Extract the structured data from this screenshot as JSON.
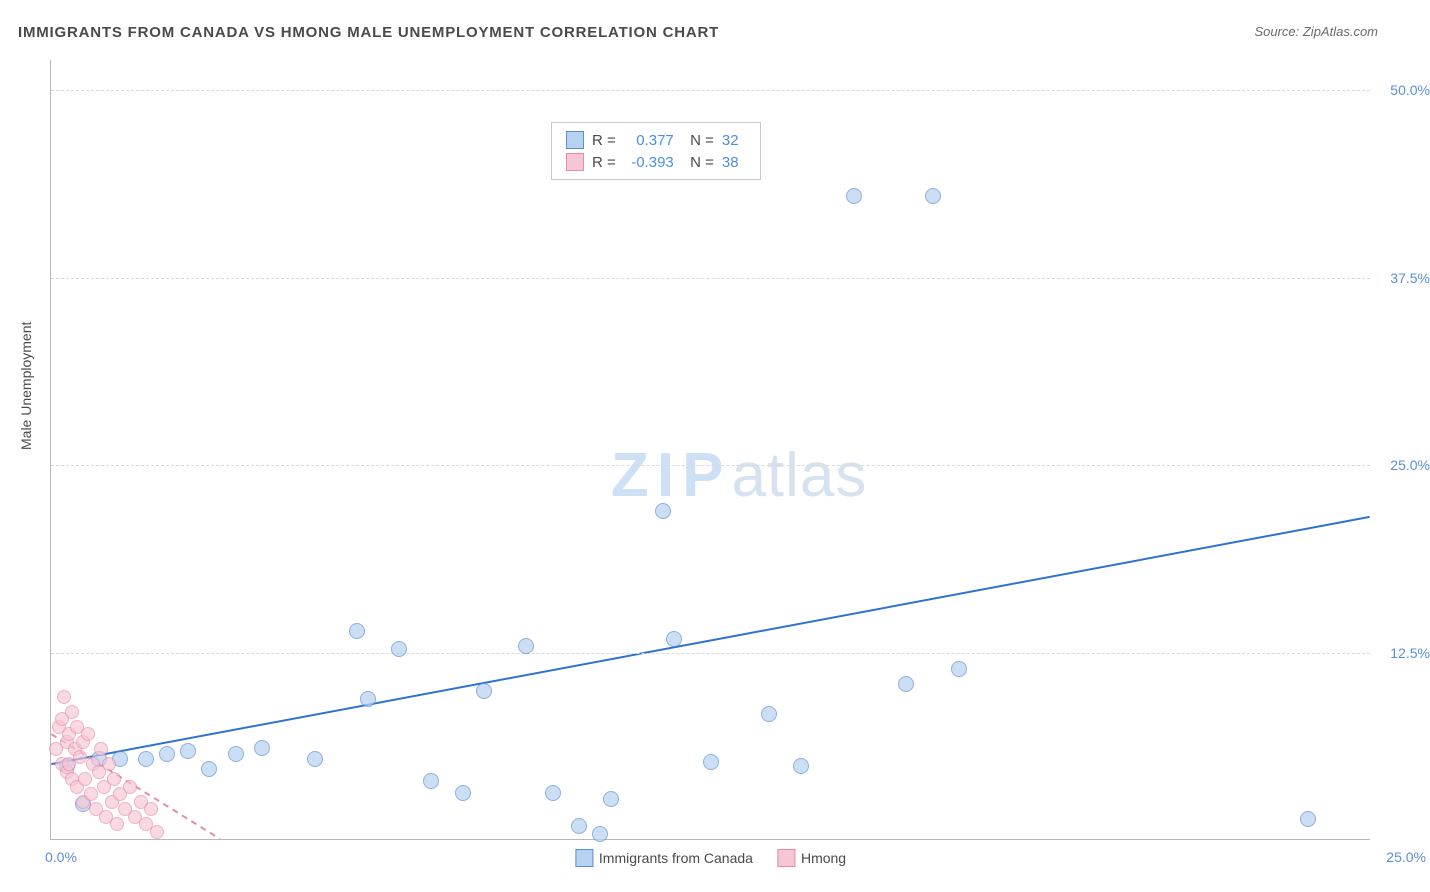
{
  "title": "IMMIGRANTS FROM CANADA VS HMONG MALE UNEMPLOYMENT CORRELATION CHART",
  "source": "Source: ZipAtlas.com",
  "y_axis_label": "Male Unemployment",
  "watermark_zip": "ZIP",
  "watermark_atlas": "atlas",
  "chart": {
    "type": "scatter",
    "background_color": "#ffffff",
    "grid_color": "#d9d9d9",
    "axis_color": "#b8b8b8",
    "text_color": "#4a4a4a",
    "tick_color": "#5a8fd6",
    "xlim": [
      0,
      25
    ],
    "ylim": [
      0,
      52
    ],
    "y_ticks": [
      {
        "v": 12.5,
        "label": "12.5%"
      },
      {
        "v": 25.0,
        "label": "25.0%"
      },
      {
        "v": 37.5,
        "label": "37.5%"
      },
      {
        "v": 50.0,
        "label": "50.0%"
      }
    ],
    "x_ticks": [
      {
        "v": 0,
        "label": "0.0%",
        "align": "left"
      },
      {
        "v": 25,
        "label": "25.0%",
        "align": "right"
      }
    ],
    "stats": [
      {
        "r": "0.377",
        "n": "32",
        "swatch_fill": "#b7d1f0",
        "swatch_border": "#5a8fd6"
      },
      {
        "r": "-0.393",
        "n": "38",
        "swatch_fill": "#f7c6d4",
        "swatch_border": "#e88ba8"
      }
    ],
    "legend": [
      {
        "label": "Immigrants from Canada",
        "fill": "#b7d1f0",
        "border": "#5a8fd6"
      },
      {
        "label": "Hmong",
        "fill": "#f7c6d4",
        "border": "#e88ba8"
      }
    ],
    "series": [
      {
        "name": "canada",
        "marker_size": 16,
        "fill": "#b7d1f0",
        "fill_opacity": 0.7,
        "border": "#5a8fd6",
        "trend": {
          "x1": 0,
          "y1": 5.0,
          "x2": 25,
          "y2": 21.5,
          "color": "#2d72d2",
          "width": 2,
          "dash": "none"
        },
        "points": [
          {
            "x": 0.3,
            "y": 6.0
          },
          {
            "x": 0.6,
            "y": 3.5
          },
          {
            "x": 0.9,
            "y": 6.5
          },
          {
            "x": 1.3,
            "y": 6.5
          },
          {
            "x": 1.8,
            "y": 6.5
          },
          {
            "x": 2.2,
            "y": 6.8
          },
          {
            "x": 2.6,
            "y": 7.0
          },
          {
            "x": 3.0,
            "y": 5.8
          },
          {
            "x": 3.5,
            "y": 6.8
          },
          {
            "x": 4.0,
            "y": 7.2
          },
          {
            "x": 5.0,
            "y": 6.5
          },
          {
            "x": 5.8,
            "y": 15.0
          },
          {
            "x": 6.0,
            "y": 10.5
          },
          {
            "x": 6.6,
            "y": 13.8
          },
          {
            "x": 7.2,
            "y": 5.0
          },
          {
            "x": 7.8,
            "y": 4.2
          },
          {
            "x": 8.2,
            "y": 11.0
          },
          {
            "x": 9.0,
            "y": 14.0
          },
          {
            "x": 9.5,
            "y": 4.2
          },
          {
            "x": 10.0,
            "y": 2.0
          },
          {
            "x": 10.4,
            "y": 1.5
          },
          {
            "x": 10.6,
            "y": 3.8
          },
          {
            "x": 11.6,
            "y": 23.0
          },
          {
            "x": 11.8,
            "y": 14.5
          },
          {
            "x": 12.5,
            "y": 6.3
          },
          {
            "x": 13.6,
            "y": 9.5
          },
          {
            "x": 14.2,
            "y": 6.0
          },
          {
            "x": 15.2,
            "y": 44.0
          },
          {
            "x": 16.2,
            "y": 11.5
          },
          {
            "x": 16.7,
            "y": 44.0
          },
          {
            "x": 17.2,
            "y": 12.5
          },
          {
            "x": 23.8,
            "y": 2.5
          }
        ]
      },
      {
        "name": "hmong",
        "marker_size": 14,
        "fill": "#f7c6d4",
        "fill_opacity": 0.65,
        "border": "#e88ba8",
        "trend": {
          "x1": 0,
          "y1": 7.0,
          "x2": 3.2,
          "y2": 0,
          "color": "#e88ba8",
          "width": 2,
          "dash": "6,5"
        },
        "points": [
          {
            "x": 0.1,
            "y": 7.0
          },
          {
            "x": 0.15,
            "y": 8.5
          },
          {
            "x": 0.2,
            "y": 6.0
          },
          {
            "x": 0.2,
            "y": 9.0
          },
          {
            "x": 0.25,
            "y": 10.5
          },
          {
            "x": 0.3,
            "y": 5.5
          },
          {
            "x": 0.3,
            "y": 7.5
          },
          {
            "x": 0.35,
            "y": 8.0
          },
          {
            "x": 0.35,
            "y": 6.0
          },
          {
            "x": 0.4,
            "y": 9.5
          },
          {
            "x": 0.4,
            "y": 5.0
          },
          {
            "x": 0.45,
            "y": 7.0
          },
          {
            "x": 0.5,
            "y": 8.5
          },
          {
            "x": 0.5,
            "y": 4.5
          },
          {
            "x": 0.55,
            "y": 6.5
          },
          {
            "x": 0.6,
            "y": 7.5
          },
          {
            "x": 0.6,
            "y": 3.5
          },
          {
            "x": 0.65,
            "y": 5.0
          },
          {
            "x": 0.7,
            "y": 8.0
          },
          {
            "x": 0.75,
            "y": 4.0
          },
          {
            "x": 0.8,
            "y": 6.0
          },
          {
            "x": 0.85,
            "y": 3.0
          },
          {
            "x": 0.9,
            "y": 5.5
          },
          {
            "x": 0.95,
            "y": 7.0
          },
          {
            "x": 1.0,
            "y": 4.5
          },
          {
            "x": 1.05,
            "y": 2.5
          },
          {
            "x": 1.1,
            "y": 6.0
          },
          {
            "x": 1.15,
            "y": 3.5
          },
          {
            "x": 1.2,
            "y": 5.0
          },
          {
            "x": 1.25,
            "y": 2.0
          },
          {
            "x": 1.3,
            "y": 4.0
          },
          {
            "x": 1.4,
            "y": 3.0
          },
          {
            "x": 1.5,
            "y": 4.5
          },
          {
            "x": 1.6,
            "y": 2.5
          },
          {
            "x": 1.7,
            "y": 3.5
          },
          {
            "x": 1.8,
            "y": 2.0
          },
          {
            "x": 1.9,
            "y": 3.0
          },
          {
            "x": 2.0,
            "y": 1.5
          }
        ]
      }
    ]
  }
}
